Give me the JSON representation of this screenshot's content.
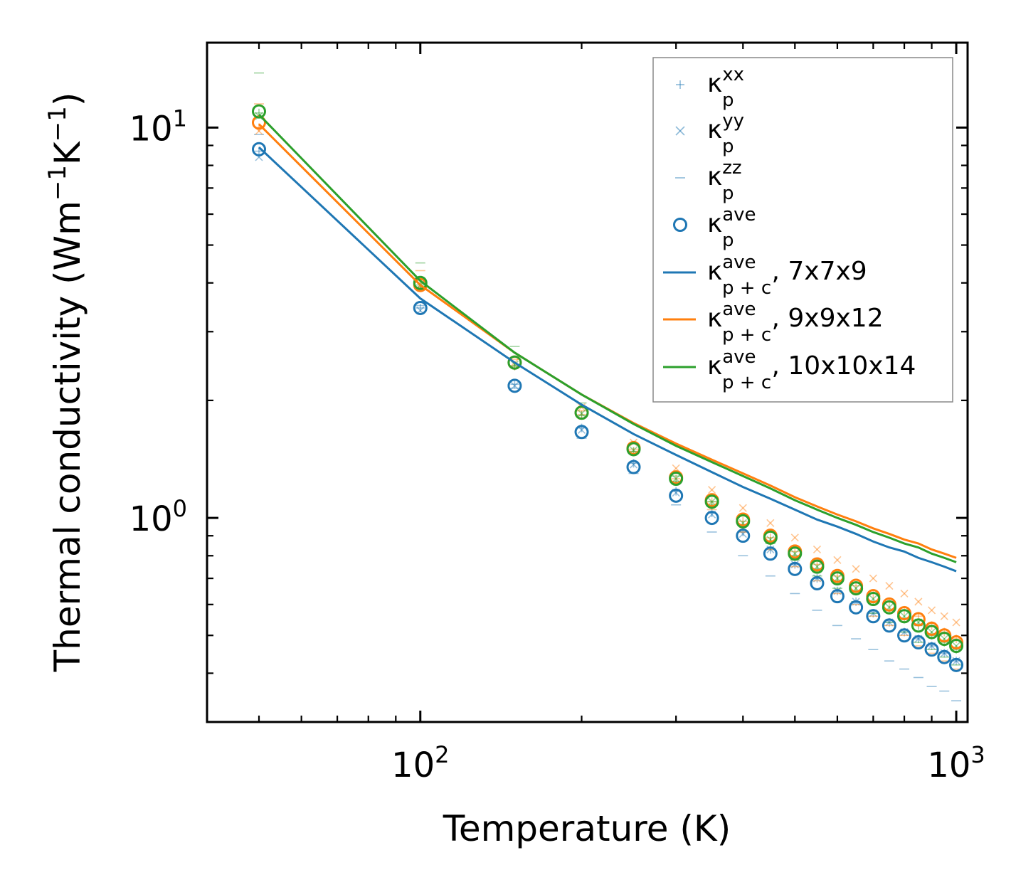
{
  "chart_data": {
    "type": "line",
    "xscale": "log",
    "yscale": "log",
    "xlabel": "Temperature (K)",
    "ylabel": "Thermal conductivity (Wm",
    "ylabel_sup1": "−1",
    "ylabel_mid": "K",
    "ylabel_sup2": "−1",
    "ylabel_end": ")",
    "xlim": [
      40,
      1050
    ],
    "ylim": [
      0.3,
      16.5
    ],
    "xticks": [
      {
        "base": "10",
        "exp": "2",
        "value": 100
      },
      {
        "base": "10",
        "exp": "3",
        "value": 1000
      }
    ],
    "yticks": [
      {
        "base": "10",
        "exp": "0",
        "value": 1
      },
      {
        "base": "10",
        "exp": "1",
        "value": 10
      }
    ],
    "temperatures": [
      50,
      100,
      150,
      200,
      250,
      300,
      350,
      400,
      450,
      500,
      550,
      600,
      650,
      700,
      750,
      800,
      850,
      900,
      950,
      1000
    ],
    "series": [
      {
        "name": "κp_xx / κp_yy / κp_zz / κp_ave (7x7x9)",
        "color": "#1f77b4",
        "kxx": [
          8.7,
          3.45,
          2.2,
          1.7,
          1.38,
          1.17,
          1.03,
          0.92,
          0.83,
          0.76,
          0.7,
          0.65,
          0.61,
          0.57,
          0.54,
          0.51,
          0.49,
          0.47,
          0.45,
          0.43
        ],
        "kyy": [
          8.4,
          3.4,
          2.18,
          1.68,
          1.37,
          1.16,
          1.02,
          0.91,
          0.83,
          0.76,
          0.7,
          0.65,
          0.61,
          0.57,
          0.54,
          0.51,
          0.49,
          0.47,
          0.45,
          0.43
        ],
        "kzz": [
          9.6,
          3.5,
          2.15,
          1.6,
          1.3,
          1.08,
          0.92,
          0.8,
          0.71,
          0.64,
          0.58,
          0.53,
          0.49,
          0.46,
          0.43,
          0.41,
          0.39,
          0.37,
          0.36,
          0.34
        ],
        "kave": [
          8.8,
          3.45,
          2.18,
          1.66,
          1.35,
          1.14,
          1.0,
          0.9,
          0.81,
          0.74,
          0.68,
          0.63,
          0.59,
          0.56,
          0.53,
          0.5,
          0.48,
          0.46,
          0.44,
          0.42
        ]
      },
      {
        "name": "κp_xx / κp_yy / κp_zz / κp_ave (9x9x12)",
        "color": "#ff7f0e",
        "kxx": [
          10.0,
          3.9,
          2.45,
          1.84,
          1.48,
          1.26,
          1.1,
          0.98,
          0.89,
          0.82,
          0.76,
          0.71,
          0.67,
          0.64,
          0.61,
          0.58,
          0.56,
          0.53,
          0.51,
          0.49
        ],
        "kyy": [
          9.8,
          3.95,
          2.5,
          1.92,
          1.56,
          1.34,
          1.18,
          1.06,
          0.97,
          0.89,
          0.83,
          0.78,
          0.74,
          0.7,
          0.67,
          0.64,
          0.61,
          0.58,
          0.56,
          0.54
        ],
        "kzz": [
          11.5,
          4.3,
          2.55,
          1.88,
          1.5,
          1.23,
          1.05,
          0.92,
          0.83,
          0.75,
          0.69,
          0.64,
          0.6,
          0.56,
          0.53,
          0.5,
          0.47,
          0.45,
          0.43,
          0.41
        ],
        "kave": [
          10.3,
          3.95,
          2.5,
          1.86,
          1.51,
          1.27,
          1.11,
          0.99,
          0.9,
          0.82,
          0.76,
          0.71,
          0.67,
          0.63,
          0.6,
          0.57,
          0.55,
          0.52,
          0.5,
          0.48
        ]
      },
      {
        "name": "κp_xx / κp_yy / κp_zz / κp_ave (10x10x14)",
        "color": "#2ca02c",
        "kxx": [
          10.9,
          3.95,
          2.45,
          1.83,
          1.48,
          1.24,
          1.08,
          0.96,
          0.87,
          0.8,
          0.74,
          0.69,
          0.65,
          0.61,
          0.58,
          0.55,
          0.53,
          0.5,
          0.48,
          0.46
        ],
        "kyy": [
          10.7,
          3.95,
          2.47,
          1.85,
          1.49,
          1.26,
          1.1,
          0.97,
          0.88,
          0.81,
          0.75,
          0.7,
          0.66,
          0.62,
          0.59,
          0.56,
          0.54,
          0.51,
          0.49,
          0.47
        ],
        "kzz": [
          13.8,
          4.5,
          2.75,
          1.97,
          1.55,
          1.28,
          1.1,
          0.96,
          0.86,
          0.78,
          0.71,
          0.66,
          0.61,
          0.57,
          0.54,
          0.51,
          0.48,
          0.46,
          0.44,
          0.42
        ],
        "kave": [
          11.0,
          4.0,
          2.5,
          1.86,
          1.5,
          1.26,
          1.1,
          0.98,
          0.89,
          0.81,
          0.75,
          0.7,
          0.66,
          0.62,
          0.59,
          0.56,
          0.53,
          0.51,
          0.49,
          0.47
        ]
      }
    ],
    "lines": [
      {
        "label": "7x7x9",
        "color": "#1f77b4",
        "values": [
          8.9,
          3.65,
          2.5,
          1.95,
          1.64,
          1.45,
          1.31,
          1.2,
          1.12,
          1.05,
          0.99,
          0.95,
          0.91,
          0.87,
          0.84,
          0.82,
          0.79,
          0.77,
          0.75,
          0.73
        ]
      },
      {
        "label": "9x9x12",
        "color": "#ff7f0e",
        "values": [
          10.2,
          3.95,
          2.65,
          2.07,
          1.75,
          1.55,
          1.41,
          1.3,
          1.21,
          1.13,
          1.07,
          1.02,
          0.98,
          0.94,
          0.91,
          0.88,
          0.86,
          0.83,
          0.81,
          0.79
        ]
      },
      {
        "label": "10x10x14",
        "color": "#2ca02c",
        "values": [
          10.8,
          4.05,
          2.65,
          2.07,
          1.74,
          1.53,
          1.39,
          1.28,
          1.19,
          1.11,
          1.05,
          1.0,
          0.96,
          0.92,
          0.89,
          0.86,
          0.84,
          0.81,
          0.79,
          0.77
        ]
      }
    ],
    "legend": {
      "placement": "top-right",
      "entries": [
        {
          "symbol": "+",
          "kappa": "κ",
          "sub": "p",
          "sup": "xx",
          "suffix": ""
        },
        {
          "symbol": "×",
          "kappa": "κ",
          "sub": "p",
          "sup": "yy",
          "suffix": ""
        },
        {
          "symbol": "–",
          "kappa": "κ",
          "sub": "p",
          "sup": "zz",
          "suffix": ""
        },
        {
          "symbol": "o",
          "kappa": "κ",
          "sub": "p",
          "sup": "ave",
          "suffix": ""
        },
        {
          "symbol": "line",
          "kappa": "κ",
          "sub": "p + c",
          "sup": "ave",
          "suffix": ", 7x7x9"
        },
        {
          "symbol": "line",
          "kappa": "κ",
          "sub": "p + c",
          "sup": "ave",
          "suffix": ", 9x9x12"
        },
        {
          "symbol": "line",
          "kappa": "κ",
          "sub": "p + c",
          "sup": "ave",
          "suffix": ", 10x10x14"
        }
      ]
    }
  }
}
